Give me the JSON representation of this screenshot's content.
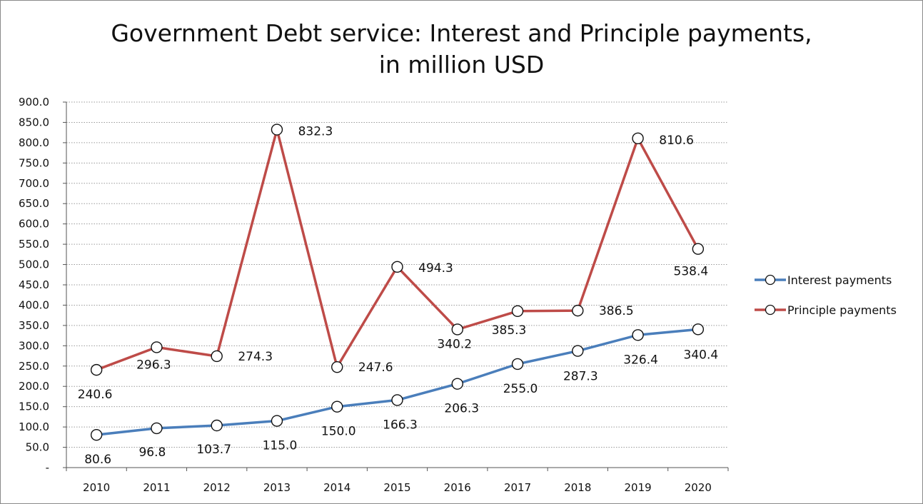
{
  "chart_data": {
    "type": "line",
    "title_line1": "Government Debt service: Interest and Principle payments,",
    "title_line2": "in million USD",
    "categories": [
      "2010",
      "2011",
      "2012",
      "2013",
      "2014",
      "2015",
      "2016",
      "2017",
      "2018",
      "2019",
      "2020"
    ],
    "series": [
      {
        "name": "Interest payments",
        "color": "#4a7ebb",
        "values": [
          80.6,
          96.8,
          103.7,
          115.0,
          150.0,
          166.3,
          206.3,
          255.0,
          287.3,
          326.4,
          340.4
        ],
        "labels": [
          "80.6",
          "96.8",
          "103.7",
          "115.0",
          "150.0",
          "166.3",
          "206.3",
          "255.0",
          "287.3",
          "326.4",
          "340.4"
        ]
      },
      {
        "name": "Principle payments",
        "color": "#be4b48",
        "values": [
          240.6,
          296.3,
          274.3,
          832.3,
          247.6,
          494.3,
          340.2,
          385.3,
          386.5,
          810.6,
          538.4
        ],
        "labels": [
          "240.6",
          "296.3",
          "274.3",
          "832.3",
          "247.6",
          "494.3",
          "340.2",
          "385.3",
          "386.5",
          "810.6",
          "538.4"
        ]
      }
    ],
    "ylim": [
      0,
      900
    ],
    "y_ticks": [
      "-",
      "50.0",
      "100.0",
      "150.0",
      "200.0",
      "250.0",
      "300.0",
      "350.0",
      "400.0",
      "450.0",
      "500.0",
      "550.0",
      "600.0",
      "650.0",
      "700.0",
      "750.0",
      "800.0",
      "850.0",
      "900.0"
    ],
    "grid": true,
    "legend_position": "right"
  }
}
